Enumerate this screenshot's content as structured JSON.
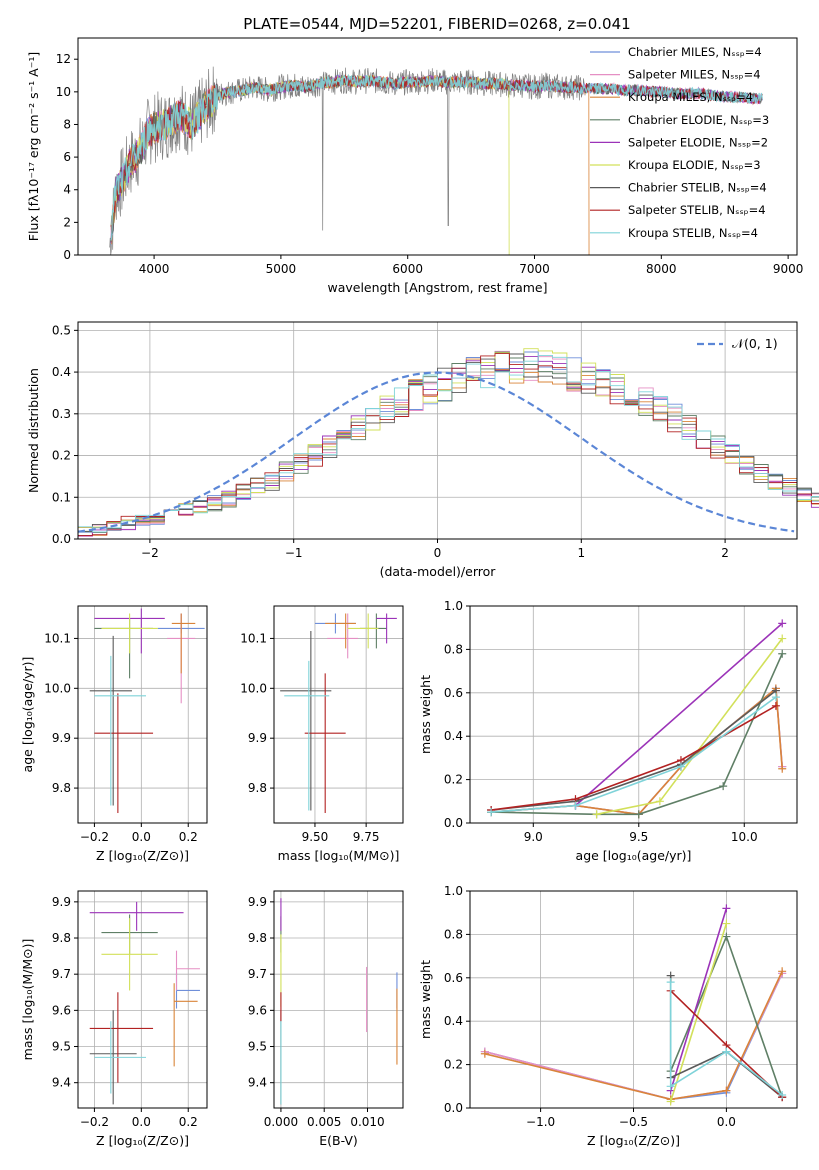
{
  "figure": {
    "title": "PLATE=0544, MJD=52201, FIBERID=0268, z=0.041",
    "series_colors": [
      "#6f8fd9",
      "#e58fc4",
      "#d9843a",
      "#5f7f66",
      "#9b33b8",
      "#d2e05a",
      "#5a5a5a",
      "#b22222",
      "#7fd3d9"
    ]
  },
  "chart_data": [
    {
      "id": "spectrum",
      "type": "line",
      "xlabel": "wavelength [Angstrom, rest frame]",
      "ylabel": "Flux [fλ10⁻¹⁷ erg cm⁻² s⁻¹ A⁻¹]",
      "xlim": [
        3400,
        9070
      ],
      "ylim": [
        0,
        13.3
      ],
      "xticks": [
        4000,
        5000,
        6000,
        7000,
        8000,
        9000
      ],
      "yticks": [
        0,
        2,
        4,
        6,
        8,
        10,
        12
      ],
      "grid": false,
      "legend_position": "top-right",
      "series": [
        {
          "name": "Chabrier MILES, N_SSP=4"
        },
        {
          "name": "Salpeter MILES, N_SSP=4"
        },
        {
          "name": "Kroupa MILES, N_SSP=4"
        },
        {
          "name": "Chabrier ELODIE, N_SSP=3"
        },
        {
          "name": "Salpeter ELODIE, N_SSP=2"
        },
        {
          "name": "Kroupa ELODIE, N_SSP=3"
        },
        {
          "name": "Chabrier STELIB, N_SSP=4"
        },
        {
          "name": "Salpeter STELIB, N_SSP=4"
        },
        {
          "name": "Kroupa STELIB, N_SSP=4"
        }
      ],
      "data_profile": [
        [
          3650,
          0.5
        ],
        [
          3700,
          4.0
        ],
        [
          3750,
          4.5
        ],
        [
          3800,
          5.5
        ],
        [
          3850,
          6.0
        ],
        [
          3900,
          6.5
        ],
        [
          3950,
          7.5
        ],
        [
          4000,
          7.8
        ],
        [
          4100,
          8.0
        ],
        [
          4200,
          8.6
        ],
        [
          4300,
          8.0
        ],
        [
          4400,
          9.0
        ],
        [
          4500,
          9.8
        ],
        [
          4600,
          10.0
        ],
        [
          4700,
          10.1
        ],
        [
          4800,
          10.3
        ],
        [
          4900,
          10.1
        ],
        [
          5000,
          10.3
        ],
        [
          5100,
          10.4
        ],
        [
          5200,
          10.3
        ],
        [
          5300,
          10.5
        ],
        [
          5400,
          10.6
        ],
        [
          5500,
          10.7
        ],
        [
          5600,
          10.6
        ],
        [
          5700,
          10.7
        ],
        [
          5800,
          10.6
        ],
        [
          5900,
          10.5
        ],
        [
          6000,
          10.6
        ],
        [
          6100,
          10.6
        ],
        [
          6200,
          10.7
        ],
        [
          6300,
          10.6
        ],
        [
          6400,
          10.6
        ],
        [
          6500,
          10.6
        ],
        [
          6600,
          10.5
        ],
        [
          6700,
          10.5
        ],
        [
          6800,
          10.4
        ],
        [
          6900,
          10.4
        ],
        [
          7000,
          10.3
        ],
        [
          7100,
          10.4
        ],
        [
          7200,
          10.3
        ],
        [
          7300,
          10.3
        ],
        [
          7400,
          10.2
        ],
        [
          7500,
          10.2
        ],
        [
          7600,
          10.2
        ],
        [
          7700,
          10.1
        ],
        [
          7800,
          10.1
        ],
        [
          7900,
          10.0
        ],
        [
          8000,
          10.0
        ],
        [
          8100,
          9.9
        ],
        [
          8200,
          9.9
        ],
        [
          8300,
          9.9
        ],
        [
          8400,
          9.8
        ],
        [
          8500,
          9.7
        ],
        [
          8600,
          9.7
        ],
        [
          8700,
          9.6
        ],
        [
          8800,
          9.6
        ]
      ]
    },
    {
      "id": "residuals",
      "type": "histogram",
      "xlabel": "(data-model)/error",
      "ylabel": "Normed distribution",
      "xlim": [
        -2.5,
        2.5
      ],
      "ylim": [
        0,
        0.52
      ],
      "xticks": [
        -2,
        -1,
        0,
        1,
        2
      ],
      "yticks": [
        0.0,
        0.1,
        0.2,
        0.3,
        0.4,
        0.5
      ],
      "grid": true,
      "legend_position": "top-right",
      "reference_curve": {
        "name": "𝒩(0, 1)",
        "mean": 0,
        "sigma": 1,
        "color": "#5b86d6"
      },
      "bin_edges_start": -2.5,
      "bin_width": 0.1,
      "base_profile": [
        0.018,
        0.023,
        0.03,
        0.038,
        0.045,
        0.052,
        0.06,
        0.07,
        0.078,
        0.085,
        0.095,
        0.11,
        0.125,
        0.14,
        0.16,
        0.18,
        0.2,
        0.22,
        0.245,
        0.265,
        0.29,
        0.31,
        0.33,
        0.345,
        0.36,
        0.37,
        0.385,
        0.395,
        0.4,
        0.41,
        0.41,
        0.42,
        0.41,
        0.405,
        0.395,
        0.385,
        0.37,
        0.36,
        0.345,
        0.33,
        0.31,
        0.29,
        0.27,
        0.245,
        0.22,
        0.2,
        0.18,
        0.16,
        0.14,
        0.125,
        0.11,
        0.095,
        0.085,
        0.075,
        0.065,
        0.055,
        0.05,
        0.042,
        0.035,
        0.03
      ]
    },
    {
      "id": "age_vs_Z",
      "type": "errorbar",
      "xlabel": "Z [log₁₀(Z/Z⊙)]",
      "ylabel": "age  [log₁₀(age/yr)]",
      "xlim": [
        -0.27,
        0.28
      ],
      "ylim": [
        9.73,
        10.165
      ],
      "xticks": [
        -0.2,
        0.0,
        0.2
      ],
      "yticks": [
        9.8,
        9.9,
        10.0,
        10.1
      ],
      "grid": true,
      "points": [
        {
          "x": 0.17,
          "y": 10.12,
          "xerr": [
            0.1,
            0.1
          ],
          "yerr": [
            0.01,
            0.03
          ]
        },
        {
          "x": 0.17,
          "y": 10.1,
          "xerr": [
            0.06,
            0.06
          ],
          "yerr": [
            0.13,
            0.05
          ]
        },
        {
          "x": 0.17,
          "y": 10.13,
          "xerr": [
            0.04,
            0.06
          ],
          "yerr": [
            0.1,
            0.02
          ]
        },
        {
          "x": -0.05,
          "y": 10.12,
          "xerr": [
            0.15,
            0.1
          ],
          "yerr": [
            0.1,
            0.02
          ]
        },
        {
          "x": 0.0,
          "y": 10.14,
          "xerr": [
            0.2,
            0.1
          ],
          "yerr": [
            0.07,
            0.02
          ]
        },
        {
          "x": -0.05,
          "y": 10.12,
          "xerr": [
            0.12,
            0.12
          ],
          "yerr": [
            0.05,
            0.03
          ]
        },
        {
          "x": -0.12,
          "y": 9.995,
          "xerr": [
            0.1,
            0.08
          ],
          "yerr": [
            0.23,
            0.11
          ]
        },
        {
          "x": -0.1,
          "y": 9.91,
          "xerr": [
            0.1,
            0.15
          ],
          "yerr": [
            0.16,
            0.08
          ]
        },
        {
          "x": -0.13,
          "y": 9.985,
          "xerr": [
            0.07,
            0.15
          ],
          "yerr": [
            0.22,
            0.08
          ]
        }
      ]
    },
    {
      "id": "age_vs_mass",
      "type": "errorbar",
      "xlabel": "mass [log₁₀(M/M⊙)]",
      "ylabel": "",
      "xlim": [
        9.3,
        9.93
      ],
      "ylim": [
        9.73,
        10.165
      ],
      "xticks": [
        9.5,
        9.75
      ],
      "yticks": [
        9.8,
        9.9,
        10.0,
        10.1
      ],
      "grid": true,
      "points": [
        {
          "x": 9.6,
          "y": 10.13,
          "xerr": [
            0.1,
            0.1
          ],
          "yerr": [
            0.02,
            0.02
          ]
        },
        {
          "x": 9.66,
          "y": 10.1,
          "xerr": [
            0.1,
            0.05
          ],
          "yerr": [
            0.04,
            0.05
          ]
        },
        {
          "x": 9.65,
          "y": 10.13,
          "xerr": [
            0.1,
            0.05
          ],
          "yerr": [
            0.05,
            0.02
          ]
        },
        {
          "x": 9.8,
          "y": 10.12,
          "xerr": [
            0.08,
            0.05
          ],
          "yerr": [
            0.04,
            0.03
          ]
        },
        {
          "x": 9.85,
          "y": 10.14,
          "xerr": [
            0.05,
            0.05
          ],
          "yerr": [
            0.05,
            0.01
          ]
        },
        {
          "x": 9.76,
          "y": 10.12,
          "xerr": [
            0.1,
            0.05
          ],
          "yerr": [
            0.04,
            0.03
          ]
        },
        {
          "x": 9.48,
          "y": 9.995,
          "xerr": [
            0.15,
            0.1
          ],
          "yerr": [
            0.24,
            0.12
          ]
        },
        {
          "x": 9.55,
          "y": 9.91,
          "xerr": [
            0.1,
            0.1
          ],
          "yerr": [
            0.16,
            0.12
          ]
        },
        {
          "x": 9.47,
          "y": 9.985,
          "xerr": [
            0.12,
            0.1
          ],
          "yerr": [
            0.23,
            0.07
          ]
        }
      ]
    },
    {
      "id": "massweight_vs_age",
      "type": "line",
      "xlabel": "age  [log₁₀(age/yr)]",
      "ylabel": "mass weight",
      "xlim": [
        8.7,
        10.25
      ],
      "ylim": [
        0,
        1.0
      ],
      "xticks": [
        9.0,
        9.5,
        10.0
      ],
      "yticks": [
        0.0,
        0.2,
        0.4,
        0.6,
        0.8,
        1.0
      ],
      "grid": true,
      "series": [
        {
          "x": [
            8.8,
            9.2,
            9.5,
            9.7,
            10.15,
            10.18
          ],
          "y": [
            0.05,
            0.08,
            0.04,
            0.26,
            0.62,
            0.26
          ]
        },
        {
          "x": [
            8.8,
            9.2,
            9.5,
            9.7,
            10.15,
            10.18
          ],
          "y": [
            0.05,
            0.08,
            0.04,
            0.26,
            0.62,
            0.26
          ]
        },
        {
          "x": [
            8.8,
            9.2,
            9.5,
            9.7,
            10.15,
            10.18
          ],
          "y": [
            0.05,
            0.08,
            0.04,
            0.26,
            0.62,
            0.25
          ]
        },
        {
          "x": [
            8.8,
            9.3,
            9.5,
            9.9,
            10.18
          ],
          "y": [
            0.05,
            0.04,
            0.04,
            0.17,
            0.78
          ]
        },
        {
          "x": [
            9.2,
            10.18
          ],
          "y": [
            0.08,
            0.92
          ]
        },
        {
          "x": [
            9.3,
            9.6,
            10.18
          ],
          "y": [
            0.04,
            0.1,
            0.85
          ]
        },
        {
          "x": [
            8.8,
            9.2,
            9.7,
            10.15
          ],
          "y": [
            0.06,
            0.1,
            0.27,
            0.61
          ]
        },
        {
          "x": [
            8.8,
            9.2,
            9.7,
            10.15
          ],
          "y": [
            0.06,
            0.11,
            0.29,
            0.54
          ]
        },
        {
          "x": [
            8.8,
            9.2,
            9.7,
            10.15
          ],
          "y": [
            0.05,
            0.08,
            0.26,
            0.58
          ]
        }
      ]
    },
    {
      "id": "mass_vs_Z",
      "type": "errorbar",
      "xlabel": "Z [log₁₀(Z/Z⊙)]",
      "ylabel": "mass [log₁₀(M/M⊙)]",
      "xlim": [
        -0.27,
        0.28
      ],
      "ylim": [
        9.33,
        9.93
      ],
      "xticks": [
        -0.2,
        0.0,
        0.2
      ],
      "yticks": [
        9.4,
        9.5,
        9.6,
        9.7,
        9.8,
        9.9
      ],
      "grid": true,
      "points": [
        {
          "x": 0.15,
          "y": 9.655,
          "xerr": [
            0.0,
            0.1
          ],
          "yerr": [
            0.05,
            0.05
          ]
        },
        {
          "x": 0.15,
          "y": 9.715,
          "xerr": [
            0.0,
            0.1
          ],
          "yerr": [
            0.06,
            0.05
          ]
        },
        {
          "x": 0.14,
          "y": 9.625,
          "xerr": [
            0.0,
            0.1
          ],
          "yerr": [
            0.18,
            0.05
          ]
        },
        {
          "x": -0.05,
          "y": 9.815,
          "xerr": [
            0.12,
            0.12
          ],
          "yerr": [
            0.06,
            0.05
          ]
        },
        {
          "x": -0.02,
          "y": 9.87,
          "xerr": [
            0.2,
            0.2
          ],
          "yerr": [
            0.05,
            0.03
          ]
        },
        {
          "x": -0.05,
          "y": 9.755,
          "xerr": [
            0.12,
            0.12
          ],
          "yerr": [
            0.1,
            0.1
          ]
        },
        {
          "x": -0.12,
          "y": 9.48,
          "xerr": [
            0.1,
            0.1
          ],
          "yerr": [
            0.14,
            0.12
          ]
        },
        {
          "x": -0.1,
          "y": 9.55,
          "xerr": [
            0.12,
            0.15
          ],
          "yerr": [
            0.15,
            0.1
          ]
        },
        {
          "x": -0.13,
          "y": 9.47,
          "xerr": [
            0.07,
            0.15
          ],
          "yerr": [
            0.1,
            0.1
          ]
        }
      ]
    },
    {
      "id": "mass_vs_EBV",
      "type": "errorbar",
      "xlabel": "E(B-V)",
      "ylabel": "",
      "xlim": [
        -0.0008,
        0.0141
      ],
      "ylim": [
        9.33,
        9.93
      ],
      "xticks": [
        0.0,
        0.005,
        0.01
      ],
      "xtick_labels": [
        "0.000",
        "0.005",
        "0.010"
      ],
      "yticks": [
        9.4,
        9.5,
        9.6,
        9.7,
        9.8,
        9.9
      ],
      "grid": true,
      "points": [
        {
          "x": 0.0134,
          "y": 9.655,
          "xerr": [
            0,
            0
          ],
          "yerr": [
            0.05,
            0.05
          ]
        },
        {
          "x": 0.0099,
          "y": 9.62,
          "xerr": [
            0,
            0
          ],
          "yerr": [
            0.08,
            0.1
          ]
        },
        {
          "x": 0.0134,
          "y": 9.56,
          "xerr": [
            0,
            0
          ],
          "yerr": [
            0.11,
            0.1
          ]
        },
        {
          "x": 0.0,
          "y": 9.81,
          "xerr": [
            0,
            0
          ],
          "yerr": [
            0.05,
            0.05
          ]
        },
        {
          "x": 0.0,
          "y": 9.87,
          "xerr": [
            0,
            0
          ],
          "yerr": [
            0.05,
            0.04
          ]
        },
        {
          "x": 0.0,
          "y": 9.71,
          "xerr": [
            0,
            0
          ],
          "yerr": [
            0.1,
            0.1
          ]
        },
        {
          "x": 0.0,
          "y": 9.48,
          "xerr": [
            0,
            0
          ],
          "yerr": [
            0.14,
            0.12
          ]
        },
        {
          "x": 0.0,
          "y": 9.62,
          "xerr": [
            0,
            0
          ],
          "yerr": [
            0.05,
            0.03
          ]
        },
        {
          "x": 0.0,
          "y": 9.47,
          "xerr": [
            0,
            0
          ],
          "yerr": [
            0.13,
            0.1
          ]
        }
      ]
    },
    {
      "id": "massweight_vs_Z",
      "type": "line",
      "xlabel": "Z [log₁₀(Z/Z⊙)]",
      "ylabel": "mass weight",
      "xlim": [
        -1.38,
        0.38
      ],
      "ylim": [
        0,
        1.0
      ],
      "xticks": [
        -1.0,
        -0.5,
        0.0
      ],
      "yticks": [
        0.0,
        0.2,
        0.4,
        0.6,
        0.8,
        1.0
      ],
      "grid": true,
      "series": [
        {
          "x": [
            -1.3,
            -0.3,
            0.0,
            0.3
          ],
          "y": [
            0.26,
            0.04,
            0.07,
            0.62
          ]
        },
        {
          "x": [
            -1.3,
            -0.3,
            0.0,
            0.3
          ],
          "y": [
            0.26,
            0.04,
            0.08,
            0.62
          ]
        },
        {
          "x": [
            -1.3,
            -0.3,
            0.0,
            0.3
          ],
          "y": [
            0.25,
            0.04,
            0.08,
            0.63
          ]
        },
        {
          "x": [
            -0.3,
            0.0,
            0.3
          ],
          "y": [
            0.17,
            0.79,
            0.05
          ]
        },
        {
          "x": [
            -0.3,
            0.0
          ],
          "y": [
            0.08,
            0.92
          ]
        },
        {
          "x": [
            -0.3,
            0.0
          ],
          "y": [
            0.03,
            0.85
          ]
        },
        {
          "x": [
            -0.3,
            -0.3,
            0.0,
            0.3
          ],
          "y": [
            0.61,
            0.14,
            0.26,
            0.05
          ]
        },
        {
          "x": [
            -0.3,
            0.0,
            0.3
          ],
          "y": [
            0.54,
            0.29,
            0.05
          ]
        },
        {
          "x": [
            -0.3,
            -0.3,
            0.0,
            0.3
          ],
          "y": [
            0.58,
            0.1,
            0.26,
            0.06
          ]
        }
      ]
    }
  ]
}
